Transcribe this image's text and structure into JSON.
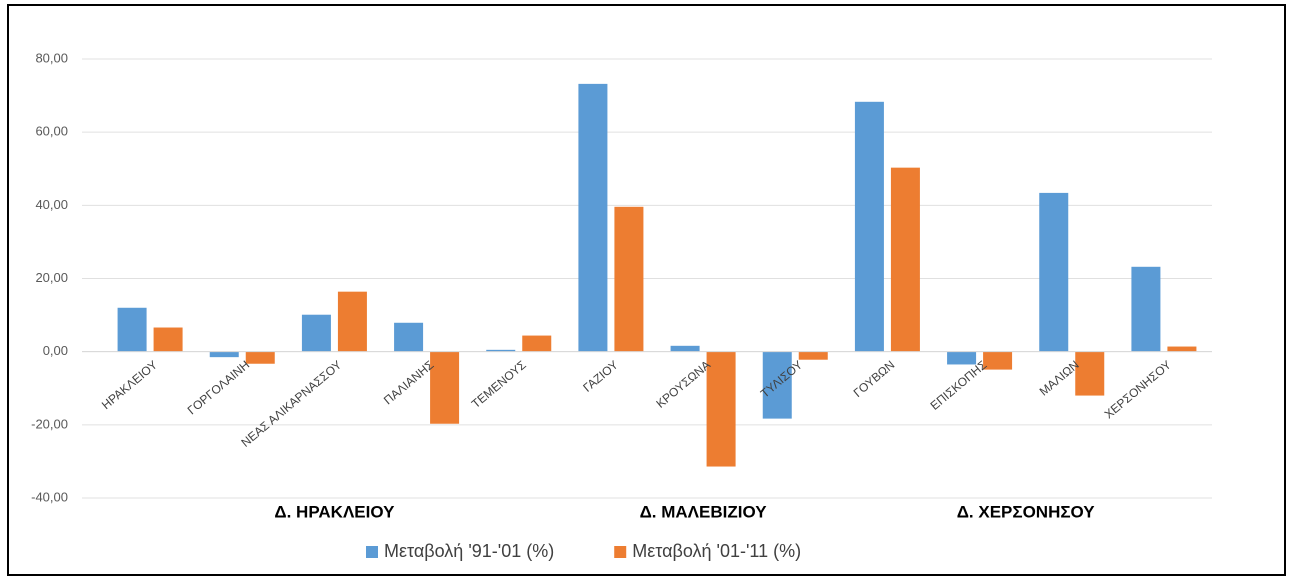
{
  "chart_data": {
    "type": "bar",
    "groups": [
      {
        "label": "Δ. ΗΡΑΚΛΕΙΟΥ",
        "categories": [
          "ΗΡΑΚΛΕΙΟΥ",
          "ΓΟΡΓΟΛΑΙΝΗ",
          "ΝΕΑΣ ΑΛΙΚΑΡΝΑΣΣΟΥ",
          "ΠΑΛΙΑΝΗΣ",
          "ΤΕΜΕΝΟΥΣ"
        ]
      },
      {
        "label": "Δ. ΜΑΛΕΒΙΖΙΟΥ",
        "categories": [
          "ΓΑΖΙΟΥ",
          "ΚΡΟΥΣΩΝΑ",
          "ΤΥΛΙΣΟΥ"
        ]
      },
      {
        "label": "Δ. ΧΕΡΣΟΝΗΣΟΥ",
        "categories": [
          "ΓΟΥΒΩΝ",
          "ΕΠΙΣΚΟΠΗΣ",
          "ΜΑΛΙΩΝ",
          "ΧΕΡΣΟΝΗΣΟΥ"
        ]
      }
    ],
    "series": [
      {
        "name": "Μεταβολή '91-'01 (%)",
        "color": "#5b9bd5",
        "values": [
          12.0,
          -1.5,
          10.1,
          7.9,
          0.5,
          73.2,
          1.6,
          -18.3,
          68.3,
          -3.5,
          43.4,
          23.2
        ]
      },
      {
        "name": "Μεταβολή '01-'11 (%)",
        "color": "#ed7d31",
        "values": [
          6.6,
          -3.3,
          16.4,
          -19.7,
          4.4,
          39.6,
          -31.4,
          -2.2,
          50.3,
          -4.9,
          -12.0,
          1.4
        ]
      }
    ],
    "ylim": [
      -40,
      80
    ],
    "yticks": [
      {
        "value": -40,
        "label": "-40,00"
      },
      {
        "value": -20,
        "label": "-20,00"
      },
      {
        "value": 0,
        "label": "0,00"
      },
      {
        "value": 20,
        "label": "20,00"
      },
      {
        "value": 40,
        "label": "40,00"
      },
      {
        "value": 60,
        "label": "60,00"
      },
      {
        "value": 80,
        "label": "80,00"
      }
    ],
    "grid": true,
    "legend": "bottom"
  }
}
